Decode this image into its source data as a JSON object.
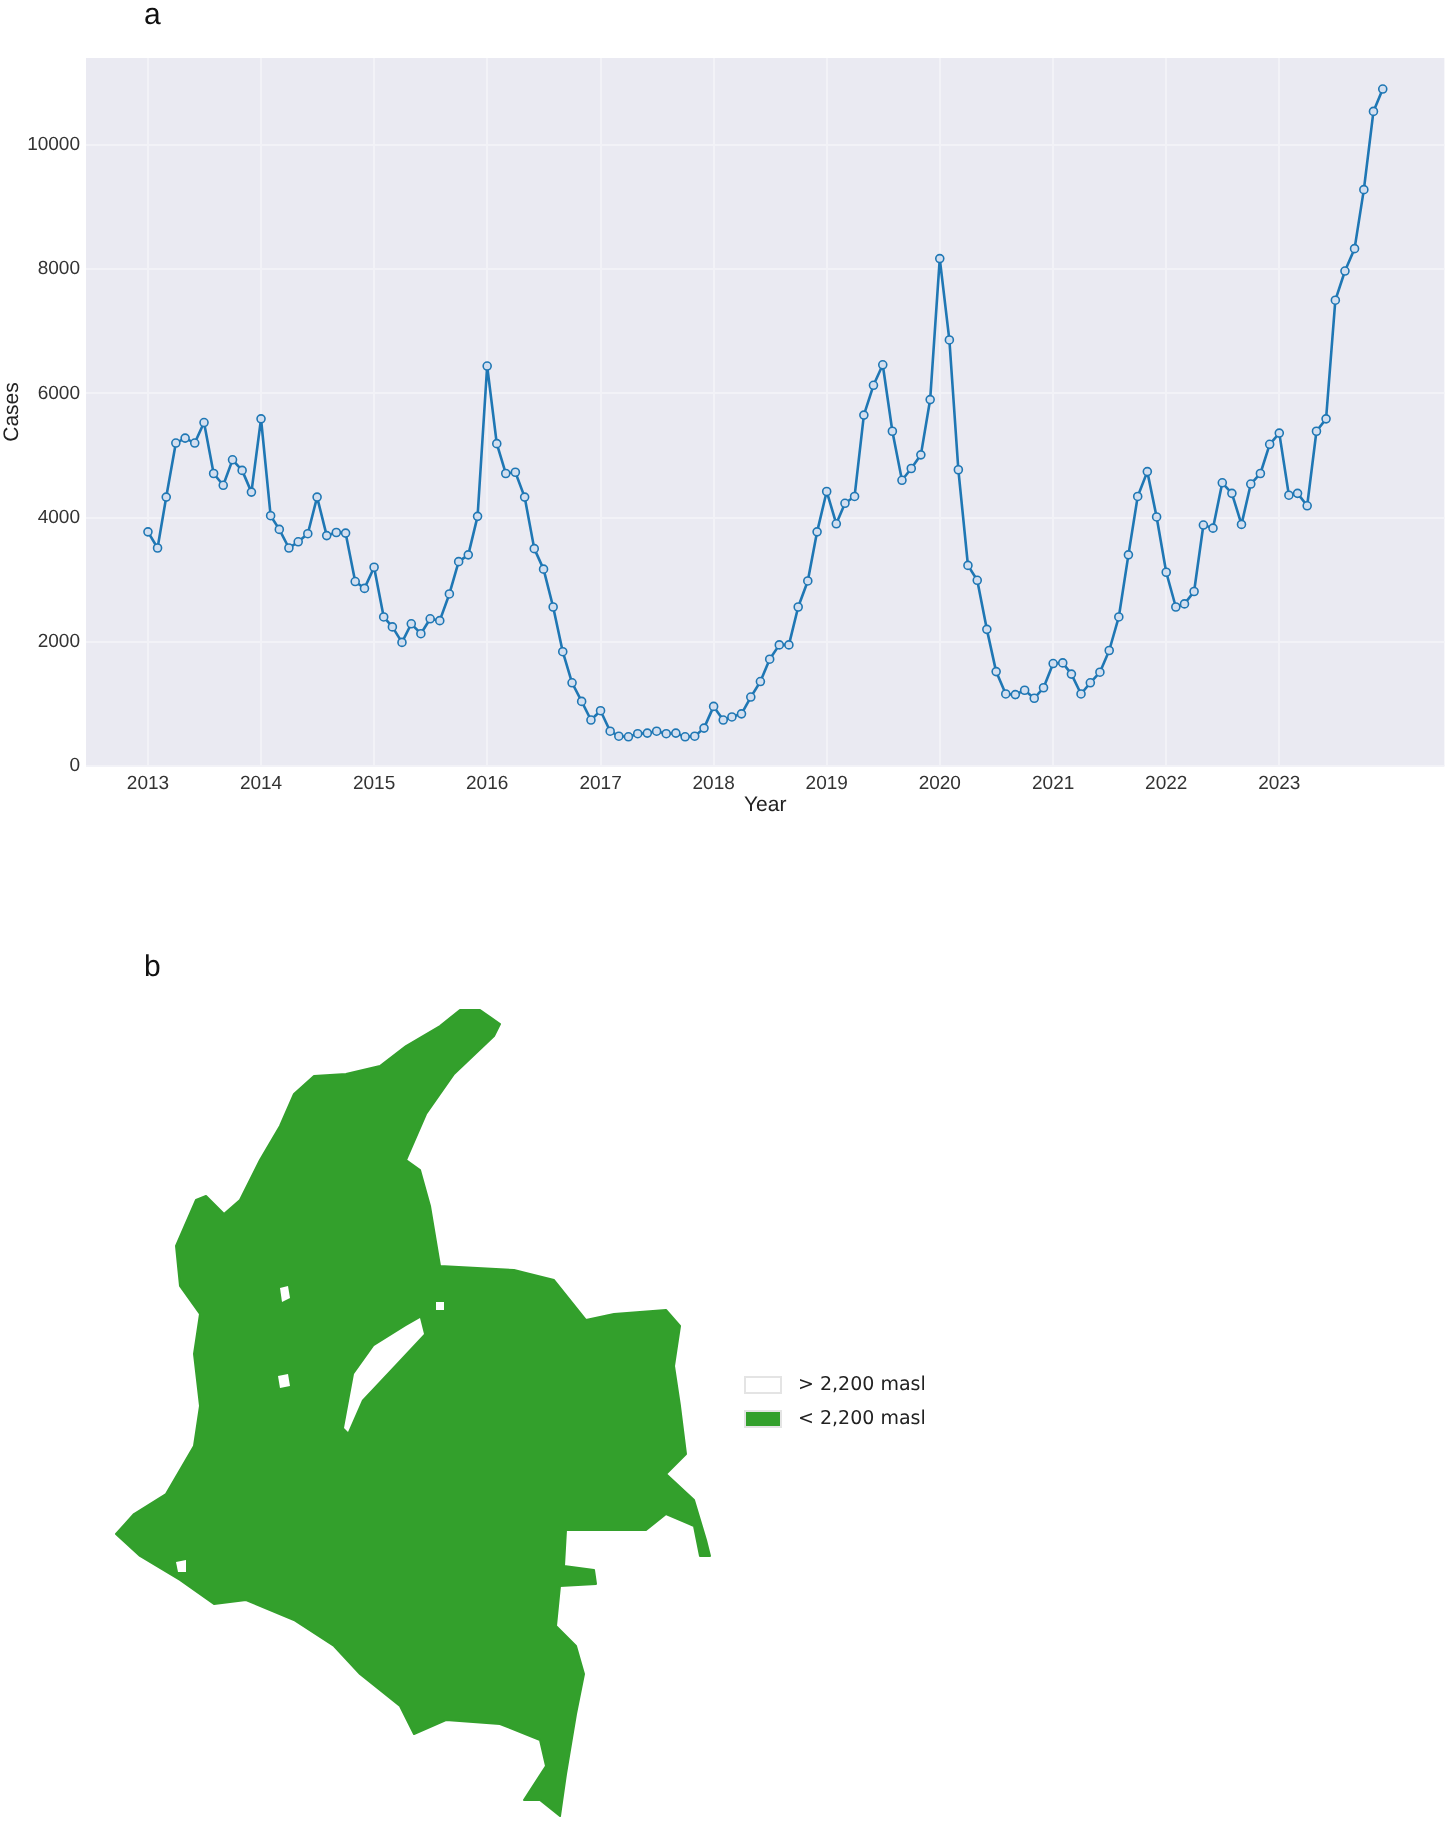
{
  "chart_data": [
    {
      "type": "line",
      "title": "a",
      "xlabel": "Year",
      "ylabel": "Cases",
      "x": [
        "2013-01",
        "2013-02",
        "2013-03",
        "2013-04",
        "2013-05",
        "2013-06",
        "2013-07",
        "2013-08",
        "2013-09",
        "2013-10",
        "2013-11",
        "2013-12",
        "2014-01",
        "2014-02",
        "2014-03",
        "2014-04",
        "2014-05",
        "2014-06",
        "2014-07",
        "2014-08",
        "2014-09",
        "2014-10",
        "2014-11",
        "2014-12",
        "2015-01",
        "2015-02",
        "2015-03",
        "2015-04",
        "2015-05",
        "2015-06",
        "2015-07",
        "2015-08",
        "2015-09",
        "2015-10",
        "2015-11",
        "2015-12",
        "2016-01",
        "2016-02",
        "2016-03",
        "2016-04",
        "2016-05",
        "2016-06",
        "2016-07",
        "2016-08",
        "2016-09",
        "2016-10",
        "2016-11",
        "2016-12",
        "2017-01",
        "2017-02",
        "2017-03",
        "2017-04",
        "2017-05",
        "2017-06",
        "2017-07",
        "2017-08",
        "2017-09",
        "2017-10",
        "2017-11",
        "2017-12",
        "2018-01",
        "2018-02",
        "2018-03",
        "2018-04",
        "2018-05",
        "2018-06",
        "2018-07",
        "2018-08",
        "2018-09",
        "2018-10",
        "2018-11",
        "2018-12",
        "2019-01",
        "2019-02",
        "2019-03",
        "2019-04",
        "2019-05",
        "2019-06",
        "2019-07",
        "2019-08",
        "2019-09",
        "2019-10",
        "2019-11",
        "2019-12",
        "2020-01",
        "2020-02",
        "2020-03",
        "2020-04",
        "2020-05",
        "2020-06",
        "2020-07",
        "2020-08",
        "2020-09",
        "2020-10",
        "2020-11",
        "2020-12",
        "2021-01",
        "2021-02",
        "2021-03",
        "2021-04",
        "2021-05",
        "2021-06",
        "2021-07",
        "2021-08",
        "2021-09",
        "2021-10",
        "2021-11",
        "2021-12",
        "2022-01",
        "2022-02",
        "2022-03",
        "2022-04",
        "2022-05",
        "2022-06",
        "2022-07",
        "2022-08",
        "2022-09",
        "2022-10",
        "2022-11",
        "2022-12",
        "2023-01",
        "2023-02",
        "2023-03",
        "2023-04",
        "2023-05",
        "2023-06",
        "2023-07",
        "2023-08",
        "2023-09",
        "2023-10",
        "2023-11",
        "2023-12"
      ],
      "series": [
        {
          "color": "#1f77b4",
          "values": [
            3770,
            3510,
            4330,
            5200,
            5280,
            5200,
            5530,
            4710,
            4520,
            4930,
            4760,
            4410,
            5590,
            4030,
            3810,
            3510,
            3610,
            3740,
            4330,
            3710,
            3760,
            3750,
            2970,
            2860,
            3200,
            2400,
            2240,
            1990,
            2290,
            2130,
            2370,
            2340,
            2770,
            3290,
            3400,
            4020,
            6440,
            5190,
            4710,
            4730,
            4330,
            3500,
            3170,
            2560,
            1840,
            1340,
            1040,
            740,
            890,
            560,
            480,
            470,
            520,
            530,
            560,
            520,
            530,
            470,
            480,
            610,
            960,
            740,
            790,
            840,
            1110,
            1360,
            1720,
            1950,
            1950,
            2560,
            2980,
            3770,
            4420,
            3900,
            4230,
            4340,
            5650,
            6130,
            6460,
            5390,
            4600,
            4790,
            5010,
            5900,
            8170,
            6860,
            4770,
            3230,
            2990,
            2200,
            1520,
            1160,
            1150,
            1220,
            1090,
            1260,
            1650,
            1660,
            1480,
            1160,
            1340,
            1510,
            1860,
            2400,
            3400,
            4340,
            4740,
            4010,
            3120,
            2560,
            2610,
            2810,
            3880,
            3830,
            4560,
            4390,
            3890,
            4540,
            4710,
            5180,
            5360,
            4360,
            4390,
            4190,
            5390,
            5590,
            7500,
            7970,
            8330,
            9280,
            10540,
            10900
          ]
        }
      ],
      "xlim": [
        "2012-06-15",
        "2024-06-17"
      ],
      "xticks": [
        "2013",
        "2014",
        "2015",
        "2016",
        "2017",
        "2018",
        "2019",
        "2020",
        "2021",
        "2022",
        "2023"
      ],
      "ylim": [
        0,
        11400
      ],
      "yticks": [
        0,
        2000,
        4000,
        6000,
        8000,
        10000
      ],
      "grid": true,
      "marker": "circle"
    },
    {
      "type": "other",
      "title": "b",
      "categories": [
        "> 2,200 masl",
        "< 2,200 masl"
      ],
      "colors": [
        "#ffffff",
        "#33a02c"
      ]
    }
  ]
}
